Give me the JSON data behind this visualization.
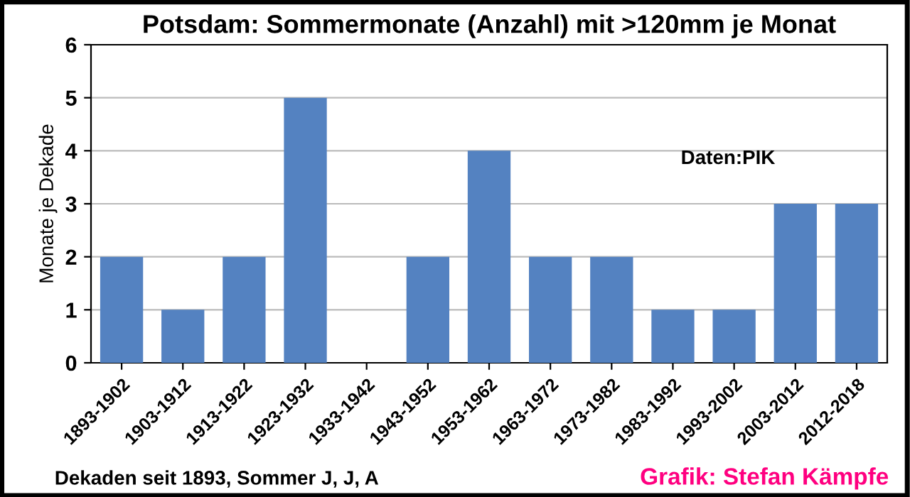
{
  "chart_data": {
    "type": "bar",
    "title": "Potsdam: Sommermonate (Anzahl) mit >120mm je Monat",
    "xlabel": "Dekaden seit 1893, Sommer J, J, A",
    "ylabel": "Monate je Dekade",
    "categories": [
      "1893-1902",
      "1903-1912",
      "1913-1922",
      "1923-1932",
      "1933-1942",
      "1943-1952",
      "1953-1962",
      "1963-1972",
      "1973-1982",
      "1983-1992",
      "1993-2002",
      "2003-2012",
      "2012-2018"
    ],
    "values": [
      2,
      1,
      2,
      5,
      0,
      2,
      4,
      2,
      2,
      1,
      1,
      3,
      3
    ],
    "color": "#5482c1",
    "ylim": [
      0,
      6
    ],
    "yticks": [
      0,
      1,
      2,
      3,
      4,
      5,
      6
    ],
    "grid": "y",
    "annotations": [
      "Daten:PIK",
      "Grafik: Stefan Kämpfe"
    ]
  }
}
